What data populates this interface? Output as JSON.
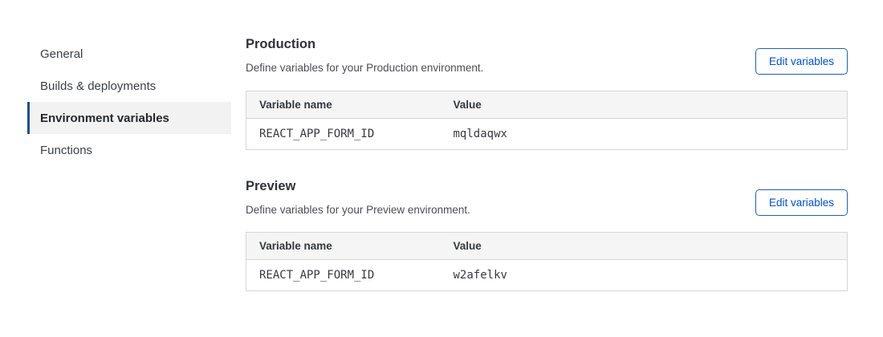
{
  "sidebar": {
    "items": [
      {
        "label": "General",
        "active": false
      },
      {
        "label": "Builds & deployments",
        "active": false
      },
      {
        "label": "Environment variables",
        "active": true
      },
      {
        "label": "Functions",
        "active": false
      }
    ]
  },
  "sections": [
    {
      "title": "Production",
      "description": "Define variables for your Production environment.",
      "button_label": "Edit variables",
      "table": {
        "headers": [
          "Variable name",
          "Value"
        ],
        "rows": [
          {
            "name": "REACT_APP_FORM_ID",
            "value": "mqldaqwx"
          }
        ]
      }
    },
    {
      "title": "Preview",
      "description": "Define variables for your Preview environment.",
      "button_label": "Edit variables",
      "table": {
        "headers": [
          "Variable name",
          "Value"
        ],
        "rows": [
          {
            "name": "REACT_APP_FORM_ID",
            "value": "w2afelkv"
          }
        ]
      }
    }
  ],
  "colors": {
    "accent_blue": "#0051c3",
    "button_border": "#2060b4",
    "active_nav_indicator": "#1b4f8a",
    "active_nav_bg": "#f2f2f2",
    "table_header_bg": "#f5f5f5",
    "table_border": "#d6d6d6"
  }
}
